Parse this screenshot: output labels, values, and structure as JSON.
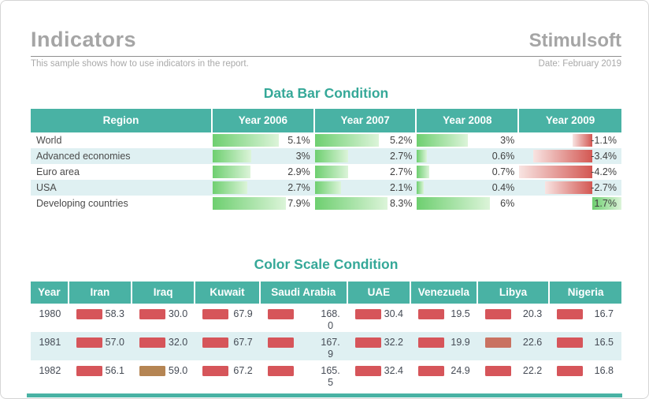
{
  "page": {
    "title": "Indicators",
    "brand": "Stimulsoft",
    "subtitle": "This sample shows how to use indicators in the report.",
    "date": "Date: February 2019"
  },
  "colors": {
    "teal_header": "#49b2a4",
    "teal_title": "#35a898",
    "row_alt": "#dff0f2",
    "bar_green_start": "#6ecf70",
    "bar_green_end": "#dcf4d9",
    "bar_red_pale": "#f8e4e2",
    "bar_red_solid": "#d35752",
    "indicator_red": "#d6555a",
    "indicator_tan": "#b58553",
    "indicator_muted_red": "#c97261"
  },
  "data_bar_table": {
    "title": "Data Bar Condition",
    "columns": [
      "Region",
      "Year 2006",
      "Year 2007",
      "Year 2008",
      "Year 2009"
    ],
    "column_ranges": [
      {
        "min": 0,
        "max": 7.9
      },
      {
        "min": 0,
        "max": 8.3
      },
      {
        "min": 0,
        "max": 6
      },
      {
        "min": -4.2,
        "max": 1.7
      }
    ],
    "rows": [
      {
        "region": "World",
        "cells": [
          {
            "value": 5.1,
            "label": "5.1%"
          },
          {
            "value": 5.2,
            "label": "5.2%"
          },
          {
            "value": 3,
            "label": "3%"
          },
          {
            "value": -1.1,
            "label": "-1.1%"
          }
        ]
      },
      {
        "region": "Advanced economies",
        "cells": [
          {
            "value": 3,
            "label": "3%"
          },
          {
            "value": 2.7,
            "label": "2.7%"
          },
          {
            "value": 0.6,
            "label": "0.6%"
          },
          {
            "value": -3.4,
            "label": "-3.4%"
          }
        ]
      },
      {
        "region": "Euro area",
        "cells": [
          {
            "value": 2.9,
            "label": "2.9%"
          },
          {
            "value": 2.7,
            "label": "2.7%"
          },
          {
            "value": 0.7,
            "label": "0.7%"
          },
          {
            "value": -4.2,
            "label": "-4.2%"
          }
        ]
      },
      {
        "region": "USA",
        "cells": [
          {
            "value": 2.7,
            "label": "2.7%"
          },
          {
            "value": 2.1,
            "label": "2.1%"
          },
          {
            "value": 0.4,
            "label": "0.4%"
          },
          {
            "value": -2.7,
            "label": "-2.7%"
          }
        ]
      },
      {
        "region": "Developing countries",
        "cells": [
          {
            "value": 7.9,
            "label": "7.9%"
          },
          {
            "value": 8.3,
            "label": "8.3%"
          },
          {
            "value": 6,
            "label": "6%"
          },
          {
            "value": 1.7,
            "label": "1.7%"
          }
        ]
      }
    ]
  },
  "color_scale_table": {
    "title": "Color Scale Condition",
    "columns": [
      "Year",
      "Iran",
      "Iraq",
      "Kuwait",
      "Saudi Arabia",
      "UAE",
      "Venezuela",
      "Libya",
      "Nigeria"
    ],
    "rows": [
      {
        "year": "1980",
        "cells": [
          {
            "value": "58.3",
            "color": "#d6555a"
          },
          {
            "value": "30.0",
            "color": "#d6555a"
          },
          {
            "value": "67.9",
            "color": "#d6555a"
          },
          {
            "value": "168.0",
            "lines": [
              "168.",
              "0"
            ],
            "color": "#d6555a"
          },
          {
            "value": "30.4",
            "color": "#d6555a"
          },
          {
            "value": "19.5",
            "color": "#d6555a"
          },
          {
            "value": "20.3",
            "color": "#d6555a"
          },
          {
            "value": "16.7",
            "color": "#d6555a"
          }
        ]
      },
      {
        "year": "1981",
        "cells": [
          {
            "value": "57.0",
            "color": "#d6555a"
          },
          {
            "value": "32.0",
            "color": "#d6555a"
          },
          {
            "value": "67.7",
            "color": "#d6555a"
          },
          {
            "value": "167.9",
            "lines": [
              "167.",
              "9"
            ],
            "color": "#d6555a"
          },
          {
            "value": "32.2",
            "color": "#d6555a"
          },
          {
            "value": "19.9",
            "color": "#d6555a"
          },
          {
            "value": "22.6",
            "color": "#c97261"
          },
          {
            "value": "16.5",
            "color": "#d6555a"
          }
        ]
      },
      {
        "year": "1982",
        "cells": [
          {
            "value": "56.1",
            "color": "#d6555a"
          },
          {
            "value": "59.0",
            "color": "#b58553"
          },
          {
            "value": "67.2",
            "color": "#d6555a"
          },
          {
            "value": "165.5",
            "lines": [
              "165.",
              "5"
            ],
            "color": "#d6555a"
          },
          {
            "value": "32.4",
            "color": "#d6555a"
          },
          {
            "value": "24.9",
            "color": "#d6555a"
          },
          {
            "value": "22.2",
            "color": "#d6555a"
          },
          {
            "value": "16.8",
            "color": "#d6555a"
          }
        ]
      }
    ]
  }
}
